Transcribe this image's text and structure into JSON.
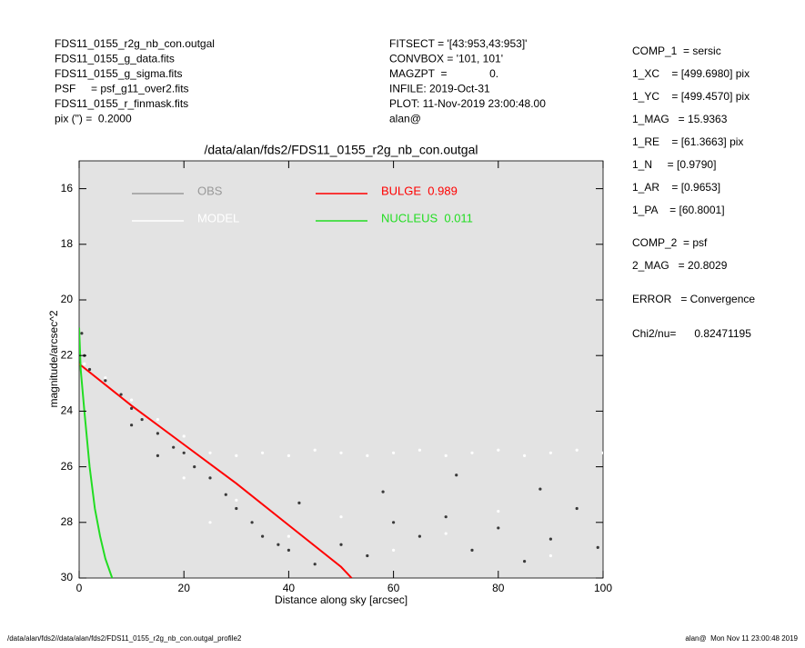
{
  "header_left": [
    "FDS11_0155_r2g_nb_con.outgal",
    "FDS11_0155_g_data.fits",
    "FDS11_0155_g_sigma.fits",
    "PSF     = psf_g11_over2.fits",
    "FDS11_0155_r_finmask.fits",
    "pix (\") =  0.2000"
  ],
  "header_middle": [
    "FITSECT = '[43:953,43:953]'",
    "CONVBOX = '101, 101'",
    "MAGZPT  =              0.",
    "INFILE: 2019-Oct-31",
    "PLOT: 11-Nov-2019 23:00:48.00",
    "alan@"
  ],
  "side_panel": [
    "COMP_1  = sersic",
    "1_XC    = [499.6980] pix",
    "1_YC    = [499.4570] pix",
    "1_MAG   = 15.9363",
    "1_RE    = [61.3663] pix",
    "1_N     = [0.9790]",
    "1_AR    = [0.9653]",
    "1_PA    = [60.8001]",
    "COMP_2  = psf",
    "2_MAG   = 20.8029",
    "ERROR   = Convergence",
    "Chi2/nu=      0.82471195"
  ],
  "footer_left": "/data/alan/fds2//data/alan/fds2/FDS11_0155_r2g_nb_con.outgal_profile2",
  "footer_right": "alan@  Mon Nov 11 23:00:48 2019",
  "chart_data": {
    "type": "scatter",
    "title": "/data/alan/fds2/FDS11_0155_r2g_nb_con.outgal",
    "xlabel": "Distance along sky [arcsec]",
    "ylabel": "magnitude/arcsec^2",
    "xlim": [
      0,
      100
    ],
    "ylim": [
      30,
      15
    ],
    "xticks": [
      0,
      20,
      40,
      60,
      80,
      100
    ],
    "yticks": [
      16,
      18,
      20,
      22,
      24,
      26,
      28,
      30
    ],
    "background": "#e3e3e3",
    "series": [
      {
        "name": "OBS",
        "color": "#3a3a3a",
        "legend_color": "#999999",
        "marker": "dot",
        "x": [
          0.5,
          1,
          2,
          5,
          8,
          10,
          12,
          15,
          18,
          20,
          22,
          25,
          28,
          30,
          33,
          35,
          38,
          40,
          45,
          50,
          55,
          60,
          65,
          70,
          75,
          80,
          85,
          90,
          95,
          99,
          10,
          15,
          42,
          58,
          72,
          88
        ],
        "values": [
          21.2,
          22,
          22.5,
          22.9,
          23.4,
          23.9,
          24.3,
          24.8,
          25.3,
          25.5,
          26,
          26.4,
          27,
          27.5,
          28,
          28.5,
          28.8,
          29,
          29.5,
          28.8,
          29.2,
          28,
          28.5,
          27.8,
          29,
          28.2,
          29.4,
          28.6,
          27.5,
          28.9,
          24.5,
          25.6,
          27.3,
          26.9,
          26.3,
          26.8
        ]
      },
      {
        "name": "MODEL",
        "color": "#ffffff",
        "legend_color": "#ffffff",
        "marker": "dot",
        "x": [
          1,
          5,
          10,
          15,
          20,
          25,
          30,
          35,
          40,
          45,
          50,
          55,
          60,
          65,
          70,
          75,
          80,
          85,
          90,
          95,
          100,
          20,
          30,
          40,
          50,
          60,
          70,
          80,
          90,
          25
        ],
        "values": [
          22.3,
          22.8,
          23.6,
          24.3,
          24.9,
          25.5,
          25.6,
          25.5,
          25.6,
          25.4,
          25.5,
          25.6,
          25.5,
          25.4,
          25.6,
          25.5,
          25.4,
          25.6,
          25.5,
          25.4,
          25.5,
          26.4,
          27.2,
          28.5,
          27.8,
          29,
          28.4,
          27.6,
          29.2,
          28
        ]
      },
      {
        "name": "BULGE  0.989",
        "color": "#ff0000",
        "legend_color": "#ff0000",
        "marker": "line",
        "x": [
          0,
          10,
          20,
          30,
          40,
          50,
          52
        ],
        "values": [
          22.3,
          23.8,
          25.2,
          26.6,
          28.1,
          29.6,
          30
        ]
      },
      {
        "name": "NUCLEUS  0.011",
        "color": "#22dd22",
        "legend_color": "#22dd22",
        "marker": "line",
        "x": [
          0,
          0.3,
          1,
          2,
          3,
          4,
          5,
          6.3
        ],
        "values": [
          21,
          22.5,
          24,
          26,
          27.5,
          28.5,
          29.3,
          30
        ]
      }
    ]
  }
}
